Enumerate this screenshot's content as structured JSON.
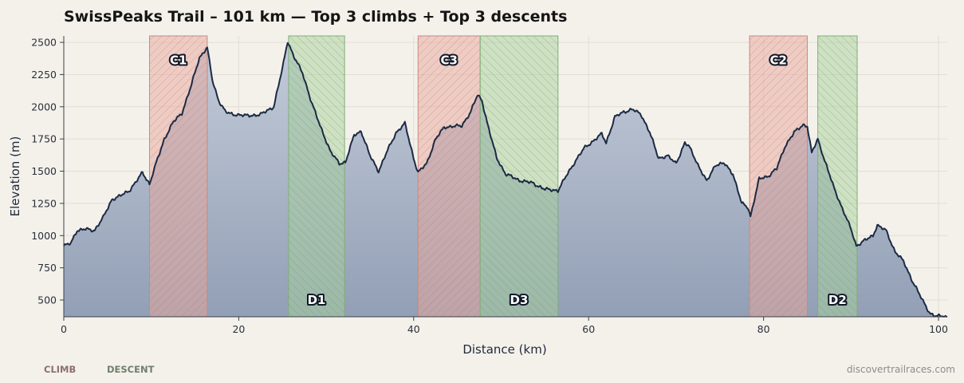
{
  "chart_data": {
    "type": "area",
    "title": "SwissPeaks Trail – 101 km — Top 3 climbs + Top 3 descents",
    "xlabel": "Distance (km)",
    "ylabel": "Elevation (m)",
    "xlim": [
      0,
      101
    ],
    "ylim": [
      370,
      2550
    ],
    "xticks": [
      0,
      20,
      40,
      60,
      80,
      100
    ],
    "yticks": [
      500,
      750,
      1000,
      1250,
      1500,
      1750,
      2000,
      2250,
      2500
    ],
    "grid": true,
    "profile": {
      "x": [
        0,
        0.8,
        1.5,
        2.5,
        3.5,
        4.5,
        5.5,
        6.5,
        7.5,
        8.5,
        9,
        9.8,
        10.5,
        11.5,
        12.5,
        13.5,
        14.5,
        15.5,
        16.4,
        17,
        17.7,
        18.5,
        19.3,
        19.8,
        21,
        22.5,
        24,
        25,
        25.6,
        26.3,
        27.3,
        28.3,
        29.2,
        30.5,
        31.5,
        32.2,
        33.2,
        34,
        35,
        36,
        37,
        38,
        39,
        40,
        40.5,
        41.5,
        42.5,
        43.5,
        44.5,
        45.5,
        46.5,
        47.3,
        47.8,
        48.5,
        49.5,
        50.5,
        52,
        53.5,
        55,
        56.5,
        57.5,
        58.5,
        59.5,
        61,
        61.5,
        62,
        63,
        64,
        65,
        66,
        67,
        68,
        69,
        70,
        71,
        71.5,
        72.5,
        73.5,
        74.5,
        75.5,
        76.5,
        77.5,
        78.2,
        78.5,
        79.5,
        80.5,
        81.5,
        82.5,
        83.5,
        84.5,
        85,
        85.5,
        86.2,
        87,
        88,
        89,
        90,
        90.6,
        91.5,
        92.5,
        93,
        94,
        95,
        96,
        97,
        98,
        99,
        99.5,
        100.5,
        101
      ],
      "elevation": [
        920,
        940,
        1040,
        1050,
        1040,
        1140,
        1280,
        1310,
        1350,
        1440,
        1490,
        1400,
        1550,
        1750,
        1880,
        1950,
        2150,
        2380,
        2460,
        2200,
        2050,
        1960,
        1940,
        1940,
        1930,
        1940,
        2000,
        2300,
        2510,
        2390,
        2260,
        2040,
        1870,
        1650,
        1560,
        1570,
        1780,
        1810,
        1620,
        1500,
        1660,
        1800,
        1870,
        1600,
        1490,
        1560,
        1750,
        1840,
        1850,
        1850,
        1960,
        2090,
        2050,
        1850,
        1600,
        1480,
        1430,
        1410,
        1360,
        1350,
        1470,
        1580,
        1680,
        1760,
        1790,
        1720,
        1920,
        1960,
        1980,
        1940,
        1800,
        1600,
        1620,
        1560,
        1720,
        1690,
        1550,
        1420,
        1550,
        1560,
        1480,
        1250,
        1220,
        1150,
        1440,
        1460,
        1520,
        1700,
        1800,
        1860,
        1850,
        1640,
        1750,
        1580,
        1380,
        1210,
        1050,
        920,
        960,
        1000,
        1080,
        1040,
        880,
        800,
        650,
        520,
        400,
        375,
        375,
        370
      ],
      "line_color": "#1c2a44"
    },
    "segments": [
      {
        "name": "C1",
        "kind": "climb",
        "start": 9.8,
        "end": 16.4
      },
      {
        "name": "C3",
        "kind": "climb",
        "start": 40.5,
        "end": 47.6
      },
      {
        "name": "C2",
        "kind": "climb",
        "start": 78.4,
        "end": 85.0
      },
      {
        "name": "D1",
        "kind": "descent",
        "start": 25.7,
        "end": 32.1
      },
      {
        "name": "D3",
        "kind": "descent",
        "start": 47.6,
        "end": 56.5
      },
      {
        "name": "D2",
        "kind": "descent",
        "start": 86.2,
        "end": 90.7
      }
    ],
    "legend": [
      {
        "label": "CLIMB",
        "color": "#8c6f70"
      },
      {
        "label": "DESCENT",
        "color": "#6f7f6c"
      }
    ],
    "colors": {
      "climb_fill": "#e9a89c",
      "climb_stroke": "#c98a80",
      "descent_fill": "#a7d19c",
      "descent_stroke": "#7fae78",
      "area_top": "#c3cbd8",
      "area_bottom": "#929fb5"
    }
  },
  "footer": {
    "credit": "discovertrailraces.com"
  }
}
